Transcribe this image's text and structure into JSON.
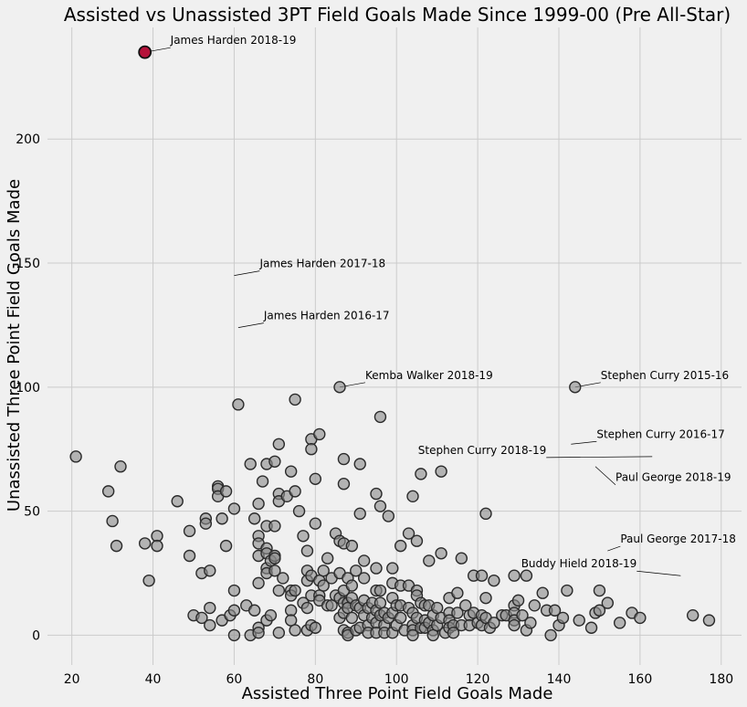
{
  "chart_data": {
    "type": "scatter",
    "title": "Assisted vs Unassisted 3PT Field Goals Made Since 1999-00 (Pre All-Star)",
    "xlabel": "Assisted Three Point Field Goals Made",
    "ylabel": "Unassisted Three Point Field Goals Made",
    "xlim": [
      14,
      185
    ],
    "ylim": [
      -12,
      245
    ],
    "xticks": [
      20,
      40,
      60,
      80,
      100,
      120,
      140,
      160,
      180
    ],
    "yticks": [
      0,
      50,
      100,
      150,
      200
    ],
    "grid": true,
    "highlight_color": "#b5123a",
    "point_color": "#8b8b8b",
    "highlight": {
      "x": 38,
      "y": 235
    },
    "annotations": [
      {
        "text": "James Harden 2018-19",
        "x": 38,
        "y": 235
      },
      {
        "text": "James Harden 2017-18",
        "x": 60,
        "y": 145
      },
      {
        "text": "James Harden 2016-17",
        "x": 61,
        "y": 124
      },
      {
        "text": "Kemba Walker 2018-19",
        "x": 86,
        "y": 100
      },
      {
        "text": "Stephen Curry 2015-16",
        "x": 144,
        "y": 100
      },
      {
        "text": "Stephen Curry 2016-17",
        "x": 143,
        "y": 77
      },
      {
        "text": "Stephen Curry 2018-19",
        "x": 163,
        "y": 72
      },
      {
        "text": "Paul George 2018-19",
        "x": 149,
        "y": 68
      },
      {
        "text": "Paul George 2017-18",
        "x": 152,
        "y": 34
      },
      {
        "text": "Buddy Hield 2018-19",
        "x": 170,
        "y": 24
      }
    ],
    "points": [
      [
        21,
        72
      ],
      [
        29,
        58
      ],
      [
        30,
        46
      ],
      [
        31,
        36
      ],
      [
        32,
        68
      ],
      [
        38,
        37
      ],
      [
        39,
        22
      ],
      [
        41,
        40
      ],
      [
        41,
        36
      ],
      [
        46,
        54
      ],
      [
        49,
        42
      ],
      [
        49,
        32
      ],
      [
        50,
        8
      ],
      [
        52,
        25
      ],
      [
        52,
        7
      ],
      [
        53,
        47
      ],
      [
        53,
        45
      ],
      [
        54,
        26
      ],
      [
        54,
        11
      ],
      [
        54,
        4
      ],
      [
        56,
        60
      ],
      [
        56,
        59
      ],
      [
        56,
        56
      ],
      [
        57,
        47
      ],
      [
        57,
        6
      ],
      [
        58,
        58
      ],
      [
        58,
        36
      ],
      [
        59,
        8
      ],
      [
        60,
        51
      ],
      [
        60,
        18
      ],
      [
        60,
        10
      ],
      [
        60,
        0
      ],
      [
        61,
        93
      ],
      [
        63,
        12
      ],
      [
        64,
        69
      ],
      [
        64,
        0
      ],
      [
        65,
        47
      ],
      [
        65,
        10
      ],
      [
        66,
        53
      ],
      [
        66,
        40
      ],
      [
        66,
        37
      ],
      [
        66,
        32
      ],
      [
        66,
        21
      ],
      [
        66,
        3
      ],
      [
        66,
        1
      ],
      [
        67,
        62
      ],
      [
        68,
        69
      ],
      [
        68,
        44
      ],
      [
        68,
        35
      ],
      [
        68,
        33
      ],
      [
        68,
        27
      ],
      [
        68,
        25
      ],
      [
        68,
        6
      ],
      [
        69,
        30
      ],
      [
        69,
        8
      ],
      [
        70,
        70
      ],
      [
        70,
        44
      ],
      [
        70,
        32
      ],
      [
        70,
        31
      ],
      [
        70,
        26
      ],
      [
        71,
        77
      ],
      [
        71,
        57
      ],
      [
        71,
        54
      ],
      [
        71,
        18
      ],
      [
        71,
        1
      ],
      [
        72,
        23
      ],
      [
        73,
        56
      ],
      [
        74,
        66
      ],
      [
        74,
        18
      ],
      [
        74,
        16
      ],
      [
        74,
        10
      ],
      [
        74,
        6
      ],
      [
        75,
        95
      ],
      [
        75,
        58
      ],
      [
        75,
        18
      ],
      [
        75,
        2
      ],
      [
        76,
        50
      ],
      [
        77,
        40
      ],
      [
        77,
        13
      ],
      [
        78,
        34
      ],
      [
        78,
        26
      ],
      [
        78,
        22
      ],
      [
        78,
        11
      ],
      [
        78,
        2
      ],
      [
        79,
        79
      ],
      [
        79,
        75
      ],
      [
        79,
        24
      ],
      [
        79,
        16
      ],
      [
        79,
        4
      ],
      [
        80,
        63
      ],
      [
        80,
        45
      ],
      [
        80,
        3
      ],
      [
        81,
        81
      ],
      [
        81,
        22
      ],
      [
        81,
        16
      ],
      [
        81,
        14
      ],
      [
        82,
        26
      ],
      [
        82,
        20
      ],
      [
        83,
        31
      ],
      [
        83,
        12
      ],
      [
        84,
        23
      ],
      [
        84,
        12
      ],
      [
        85,
        41
      ],
      [
        85,
        16
      ],
      [
        86,
        100
      ],
      [
        86,
        38
      ],
      [
        86,
        25
      ],
      [
        86,
        15
      ],
      [
        86,
        7
      ],
      [
        87,
        71
      ],
      [
        87,
        61
      ],
      [
        87,
        37
      ],
      [
        87,
        18
      ],
      [
        87,
        13
      ],
      [
        87,
        9
      ],
      [
        87,
        2
      ],
      [
        88,
        23
      ],
      [
        88,
        13
      ],
      [
        88,
        11
      ],
      [
        88,
        1
      ],
      [
        88,
        0
      ],
      [
        89,
        36
      ],
      [
        89,
        20
      ],
      [
        89,
        15
      ],
      [
        89,
        7
      ],
      [
        90,
        26
      ],
      [
        90,
        12
      ],
      [
        90,
        2
      ],
      [
        91,
        69
      ],
      [
        91,
        49
      ],
      [
        91,
        11
      ],
      [
        91,
        3
      ],
      [
        92,
        30
      ],
      [
        92,
        23
      ],
      [
        92,
        14
      ],
      [
        92,
        8
      ],
      [
        93,
        11
      ],
      [
        93,
        4
      ],
      [
        93,
        1
      ],
      [
        94,
        13
      ],
      [
        94,
        7
      ],
      [
        95,
        57
      ],
      [
        95,
        27
      ],
      [
        95,
        18
      ],
      [
        95,
        10
      ],
      [
        95,
        5
      ],
      [
        95,
        1
      ],
      [
        96,
        88
      ],
      [
        96,
        52
      ],
      [
        96,
        18
      ],
      [
        96,
        13
      ],
      [
        96,
        8
      ],
      [
        97,
        9
      ],
      [
        97,
        4
      ],
      [
        97,
        1
      ],
      [
        98,
        48
      ],
      [
        98,
        7
      ],
      [
        99,
        27
      ],
      [
        99,
        21
      ],
      [
        99,
        15
      ],
      [
        99,
        9
      ],
      [
        99,
        1
      ],
      [
        100,
        12
      ],
      [
        100,
        4
      ],
      [
        101,
        36
      ],
      [
        101,
        20
      ],
      [
        101,
        12
      ],
      [
        101,
        7
      ],
      [
        102,
        2
      ],
      [
        103,
        41
      ],
      [
        103,
        20
      ],
      [
        103,
        11
      ],
      [
        104,
        56
      ],
      [
        104,
        9
      ],
      [
        104,
        4
      ],
      [
        104,
        2
      ],
      [
        104,
        0
      ],
      [
        105,
        38
      ],
      [
        105,
        18
      ],
      [
        105,
        16
      ],
      [
        105,
        7
      ],
      [
        106,
        65
      ],
      [
        106,
        13
      ],
      [
        106,
        3
      ],
      [
        107,
        12
      ],
      [
        107,
        6
      ],
      [
        107,
        3
      ],
      [
        108,
        30
      ],
      [
        108,
        12
      ],
      [
        108,
        5
      ],
      [
        109,
        8
      ],
      [
        109,
        2
      ],
      [
        109,
        0
      ],
      [
        110,
        11
      ],
      [
        110,
        4
      ],
      [
        111,
        66
      ],
      [
        111,
        33
      ],
      [
        111,
        7
      ],
      [
        112,
        1
      ],
      [
        113,
        15
      ],
      [
        113,
        9
      ],
      [
        113,
        6
      ],
      [
        113,
        3
      ],
      [
        114,
        4
      ],
      [
        114,
        1
      ],
      [
        115,
        17
      ],
      [
        115,
        9
      ],
      [
        116,
        31
      ],
      [
        116,
        4
      ],
      [
        117,
        12
      ],
      [
        118,
        8
      ],
      [
        118,
        4
      ],
      [
        119,
        24
      ],
      [
        119,
        9
      ],
      [
        120,
        5
      ],
      [
        121,
        24
      ],
      [
        121,
        8
      ],
      [
        121,
        4
      ],
      [
        122,
        49
      ],
      [
        122,
        15
      ],
      [
        122,
        7
      ],
      [
        123,
        3
      ],
      [
        124,
        22
      ],
      [
        124,
        5
      ],
      [
        126,
        8
      ],
      [
        127,
        8
      ],
      [
        129,
        24
      ],
      [
        129,
        12
      ],
      [
        129,
        9
      ],
      [
        129,
        6
      ],
      [
        129,
        4
      ],
      [
        130,
        14
      ],
      [
        131,
        8
      ],
      [
        132,
        24
      ],
      [
        132,
        2
      ],
      [
        133,
        5
      ],
      [
        134,
        12
      ],
      [
        136,
        17
      ],
      [
        137,
        10
      ],
      [
        138,
        0
      ],
      [
        139,
        10
      ],
      [
        140,
        4
      ],
      [
        141,
        7
      ],
      [
        142,
        18
      ],
      [
        144,
        100
      ],
      [
        145,
        6
      ],
      [
        148,
        3
      ],
      [
        149,
        9
      ],
      [
        150,
        18
      ],
      [
        150,
        10
      ],
      [
        152,
        13
      ],
      [
        155,
        5
      ],
      [
        158,
        9
      ],
      [
        160,
        7
      ],
      [
        173,
        8
      ],
      [
        177,
        6
      ]
    ]
  }
}
